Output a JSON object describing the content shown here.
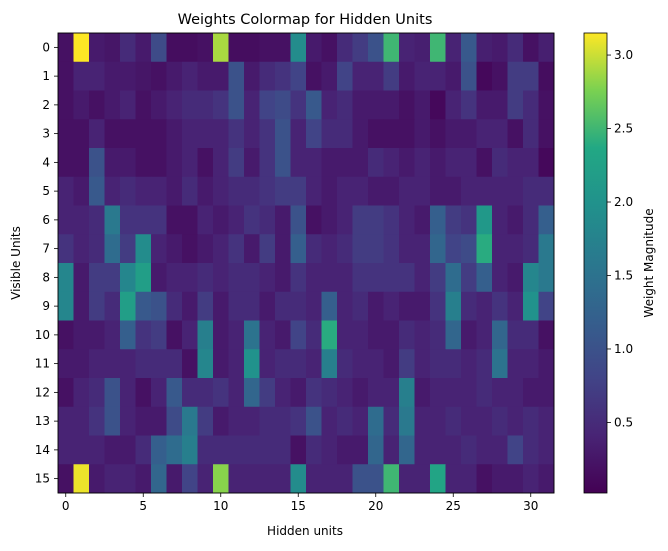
{
  "chart_data": {
    "type": "heatmap",
    "title": "Weights Colormap for Hidden Units",
    "xlabel": "Hidden units",
    "ylabel": "Visible Units",
    "colorbar_label": "Weight Magnitude",
    "colormap": "viridis",
    "n_cols": 32,
    "n_rows": 16,
    "xticks": [
      0,
      5,
      10,
      15,
      20,
      25,
      30
    ],
    "yticks": [
      0,
      1,
      2,
      3,
      4,
      5,
      6,
      7,
      8,
      9,
      10,
      11,
      12,
      13,
      14,
      15
    ],
    "colorbar_ticks": [
      0.5,
      1.0,
      1.5,
      2.0,
      2.5,
      3.0
    ],
    "vmin": 0.02,
    "vmax": 3.15,
    "values": [
      [
        0.2,
        3.15,
        0.3,
        0.25,
        0.5,
        0.3,
        0.9,
        0.15,
        0.15,
        0.2,
        2.9,
        0.15,
        0.15,
        0.2,
        0.2,
        1.9,
        0.3,
        0.2,
        0.5,
        0.7,
        1.0,
        2.5,
        0.4,
        0.35,
        2.5,
        0.4,
        1.1,
        0.35,
        0.3,
        0.5,
        0.2,
        0.35
      ],
      [
        0.2,
        0.4,
        0.4,
        0.3,
        0.3,
        0.25,
        0.2,
        0.3,
        0.4,
        0.3,
        0.3,
        1.0,
        0.3,
        0.5,
        0.6,
        0.8,
        0.2,
        0.3,
        0.8,
        0.4,
        0.4,
        0.7,
        0.3,
        0.4,
        0.4,
        0.3,
        1.0,
        0.1,
        0.2,
        0.7,
        0.7,
        0.15
      ],
      [
        0.2,
        0.3,
        0.2,
        0.3,
        0.4,
        0.2,
        0.3,
        0.4,
        0.5,
        0.5,
        0.6,
        1.0,
        0.4,
        0.8,
        0.9,
        0.6,
        1.1,
        0.4,
        0.5,
        0.3,
        0.3,
        0.3,
        0.2,
        0.3,
        0.1,
        0.4,
        0.6,
        0.3,
        0.3,
        0.7,
        0.5,
        0.2
      ],
      [
        0.2,
        0.2,
        0.4,
        0.2,
        0.2,
        0.2,
        0.2,
        0.3,
        0.4,
        0.4,
        0.4,
        0.6,
        0.4,
        0.6,
        1.0,
        0.4,
        0.8,
        0.5,
        0.5,
        0.3,
        0.2,
        0.2,
        0.2,
        0.3,
        0.2,
        0.3,
        0.3,
        0.4,
        0.4,
        0.2,
        0.5,
        0.2
      ],
      [
        0.2,
        0.2,
        1.0,
        0.3,
        0.3,
        0.2,
        0.2,
        0.3,
        0.4,
        0.2,
        0.4,
        0.7,
        0.3,
        0.6,
        1.0,
        0.4,
        0.4,
        0.3,
        0.3,
        0.3,
        0.5,
        0.4,
        0.3,
        0.4,
        0.3,
        0.4,
        0.4,
        0.2,
        0.5,
        0.4,
        0.4,
        0.1
      ],
      [
        0.4,
        0.3,
        1.1,
        0.4,
        0.5,
        0.4,
        0.4,
        0.3,
        0.5,
        0.3,
        0.4,
        0.5,
        0.5,
        0.6,
        0.7,
        0.7,
        0.4,
        0.3,
        0.4,
        0.4,
        0.3,
        0.3,
        0.4,
        0.4,
        0.3,
        0.3,
        0.4,
        0.4,
        0.4,
        0.4,
        0.5,
        0.5
      ],
      [
        0.4,
        0.4,
        0.5,
        1.6,
        0.6,
        0.6,
        0.6,
        0.2,
        0.2,
        0.4,
        0.3,
        0.4,
        0.6,
        0.5,
        0.3,
        1.0,
        0.2,
        0.3,
        0.4,
        0.7,
        0.7,
        0.6,
        0.4,
        0.3,
        1.2,
        0.7,
        0.6,
        2.1,
        0.4,
        0.3,
        0.5,
        1.2
      ],
      [
        0.6,
        0.4,
        0.5,
        1.4,
        0.7,
        1.9,
        0.4,
        0.3,
        0.2,
        0.3,
        0.4,
        0.6,
        0.3,
        0.7,
        0.3,
        1.2,
        0.5,
        0.4,
        0.5,
        0.7,
        0.7,
        0.6,
        0.4,
        0.4,
        1.3,
        0.8,
        0.9,
        2.4,
        0.4,
        0.4,
        0.5,
        1.6
      ],
      [
        1.8,
        0.3,
        0.7,
        0.7,
        1.8,
        2.2,
        0.3,
        0.4,
        0.4,
        0.5,
        0.4,
        0.5,
        0.5,
        0.4,
        0.3,
        0.6,
        0.4,
        0.4,
        0.4,
        0.6,
        0.6,
        0.6,
        0.6,
        0.4,
        0.7,
        1.4,
        0.7,
        1.2,
        0.4,
        0.3,
        1.8,
        1.6
      ],
      [
        1.8,
        0.3,
        0.7,
        0.5,
        2.2,
        1.1,
        1.0,
        0.5,
        0.3,
        0.7,
        0.3,
        0.5,
        0.5,
        0.3,
        0.5,
        0.5,
        0.4,
        1.2,
        0.4,
        0.5,
        0.3,
        0.4,
        0.3,
        0.3,
        0.6,
        1.7,
        0.5,
        0.4,
        0.6,
        0.4,
        2.0,
        0.8
      ],
      [
        0.2,
        0.3,
        0.3,
        0.4,
        1.2,
        0.6,
        0.7,
        0.2,
        0.4,
        1.7,
        0.3,
        0.4,
        1.5,
        0.4,
        0.3,
        0.8,
        0.5,
        2.4,
        0.4,
        0.4,
        0.3,
        0.3,
        0.5,
        0.4,
        0.5,
        1.3,
        0.3,
        0.4,
        1.3,
        0.5,
        0.5,
        0.2
      ],
      [
        0.3,
        0.3,
        0.4,
        0.4,
        0.4,
        0.5,
        0.5,
        0.5,
        0.2,
        1.8,
        0.3,
        0.4,
        2.0,
        0.4,
        0.5,
        0.5,
        0.4,
        1.7,
        0.5,
        0.4,
        0.4,
        0.3,
        0.7,
        0.4,
        0.5,
        0.5,
        0.4,
        0.5,
        1.5,
        0.4,
        0.4,
        0.3
      ],
      [
        0.2,
        0.4,
        0.5,
        1.0,
        0.4,
        0.2,
        0.4,
        1.1,
        0.5,
        0.5,
        0.6,
        0.4,
        1.3,
        0.7,
        0.4,
        0.3,
        0.6,
        0.5,
        0.4,
        0.3,
        0.4,
        0.4,
        1.7,
        0.3,
        0.4,
        0.4,
        0.4,
        0.5,
        0.4,
        0.4,
        0.3,
        0.3
      ],
      [
        0.4,
        0.4,
        0.6,
        1.0,
        0.4,
        0.3,
        0.3,
        0.9,
        1.6,
        0.7,
        0.3,
        0.4,
        0.4,
        0.5,
        0.5,
        0.6,
        1.0,
        0.4,
        0.5,
        0.4,
        1.4,
        0.5,
        1.6,
        0.4,
        0.4,
        0.5,
        0.4,
        0.4,
        0.5,
        0.4,
        0.5,
        0.4
      ],
      [
        0.4,
        0.4,
        0.4,
        0.3,
        0.3,
        0.5,
        1.2,
        1.4,
        1.7,
        0.5,
        0.5,
        0.5,
        0.5,
        0.5,
        0.5,
        0.2,
        0.5,
        0.4,
        0.3,
        0.3,
        1.3,
        0.4,
        1.3,
        0.4,
        0.4,
        0.4,
        0.5,
        0.4,
        0.4,
        0.8,
        0.5,
        0.4
      ],
      [
        0.2,
        3.1,
        0.3,
        0.4,
        0.4,
        0.3,
        1.3,
        0.3,
        0.8,
        0.4,
        2.8,
        0.4,
        0.4,
        0.4,
        0.4,
        1.9,
        0.4,
        0.4,
        0.4,
        1.0,
        1.0,
        2.5,
        0.4,
        0.4,
        2.3,
        0.4,
        0.4,
        0.2,
        0.3,
        0.3,
        0.4,
        0.3
      ]
    ]
  }
}
